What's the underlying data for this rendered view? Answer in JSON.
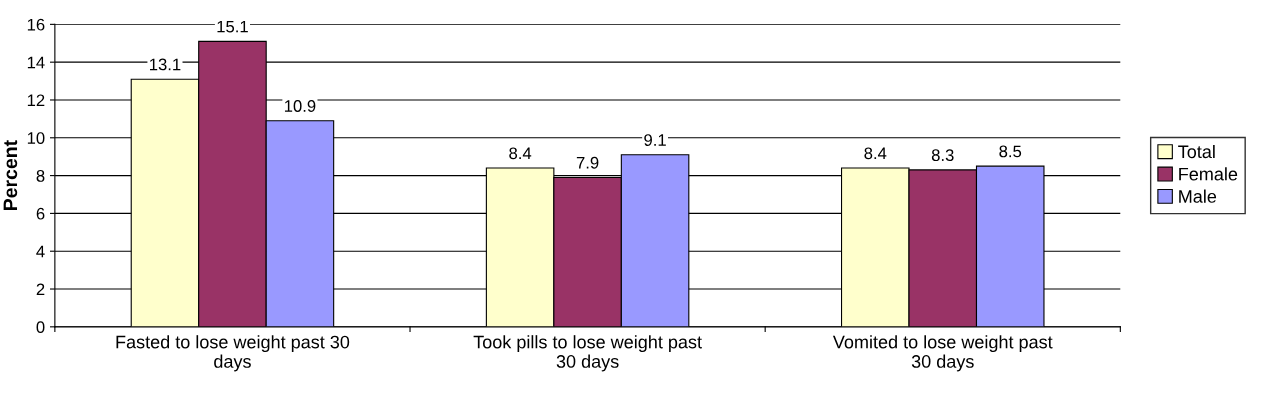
{
  "chart_data": {
    "type": "bar",
    "ylabel": "Percent",
    "categories": [
      "Fasted to lose weight past 30\ndays",
      "Took pills to lose weight past\n30 days",
      "Vomited to lose weight past\n30 days"
    ],
    "series": [
      {
        "name": "Total",
        "color": "#ffffcc",
        "values": [
          13.1,
          8.4,
          8.4
        ]
      },
      {
        "name": "Female",
        "color": "#993366",
        "values": [
          15.1,
          7.9,
          8.3
        ]
      },
      {
        "name": "Male",
        "color": "#9999ff",
        "values": [
          10.9,
          9.1,
          8.5
        ]
      }
    ],
    "ylim": [
      0,
      16
    ],
    "yticks": [
      0,
      2,
      4,
      6,
      8,
      10,
      12,
      14,
      16
    ],
    "grid": "y",
    "legend": "right",
    "data_labels": true
  }
}
